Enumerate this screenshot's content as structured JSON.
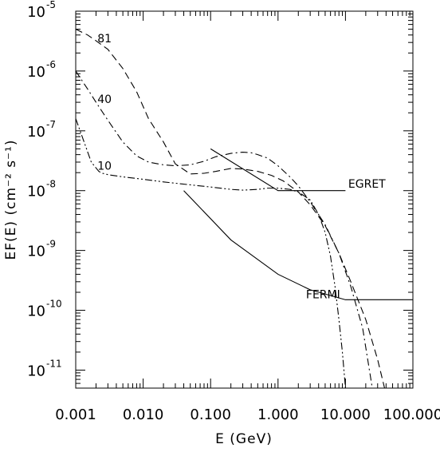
{
  "chart_data": {
    "type": "line",
    "title": "",
    "xlabel": "E (GeV)",
    "ylabel": "EF(E)  (cm⁻² s⁻¹)",
    "xscale": "log",
    "yscale": "log",
    "xlim": [
      0.001,
      100
    ],
    "ylim": [
      5e-12,
      1e-05
    ],
    "grid": false,
    "x_tick_labels": [
      "0.001",
      "0.010",
      "0.100",
      "1.000",
      "10.000",
      "100.000"
    ],
    "y_tick_labels": [
      {
        "base": "10",
        "exp": "-5"
      },
      {
        "base": "10",
        "exp": "-6"
      },
      {
        "base": "10",
        "exp": "-7"
      },
      {
        "base": "10",
        "exp": "-8"
      },
      {
        "base": "10",
        "exp": "-9"
      },
      {
        "base": "10",
        "exp": "-10"
      },
      {
        "base": "10",
        "exp": "-11"
      }
    ],
    "series": [
      {
        "name": "81",
        "style": "dashed",
        "x": [
          0.001,
          0.0015,
          0.002,
          0.003,
          0.005,
          0.008,
          0.012,
          0.02,
          0.03,
          0.05,
          0.08,
          0.12,
          0.2,
          0.3,
          0.5,
          0.8,
          1.2,
          2,
          3,
          5,
          8,
          12,
          20,
          30,
          38
        ],
        "y": [
          5e-06,
          4e-06,
          3.2e-06,
          2.3e-06,
          1.1e-06,
          4.5e-07,
          1.6e-07,
          6.5e-08,
          2.8e-08,
          1.9e-08,
          1.95e-08,
          2.1e-08,
          2.35e-08,
          2.3e-08,
          2.1e-08,
          1.8e-08,
          1.45e-08,
          9.5e-09,
          5.8e-09,
          2.6e-09,
          9e-10,
          3e-10,
          7e-11,
          1.5e-11,
          5e-12
        ]
      },
      {
        "name": "40",
        "style": "dashdot",
        "x": [
          0.001,
          0.0015,
          0.002,
          0.003,
          0.005,
          0.008,
          0.012,
          0.02,
          0.03,
          0.05,
          0.08,
          0.12,
          0.2,
          0.3,
          0.4,
          0.5,
          0.7,
          1,
          1.5,
          2,
          3,
          5,
          8,
          12,
          18,
          25
        ],
        "y": [
          1e-06,
          5e-07,
          3e-07,
          1.5e-07,
          6.5e-08,
          3.8e-08,
          3e-08,
          2.7e-08,
          2.6e-08,
          2.7e-08,
          3.1e-08,
          3.7e-08,
          4.2e-08,
          4.4e-08,
          4.3e-08,
          4e-08,
          3.5e-08,
          2.6e-08,
          1.7e-08,
          1.2e-08,
          6.5e-09,
          2.7e-09,
          9e-10,
          2.5e-10,
          5e-11,
          5e-12
        ]
      },
      {
        "name": "10",
        "style": "dashdotdot",
        "x": [
          0.001,
          0.0013,
          0.0017,
          0.0022,
          0.0025,
          0.003,
          0.005,
          0.01,
          0.02,
          0.05,
          0.1,
          0.2,
          0.3,
          0.5,
          0.7,
          1,
          1.5,
          2,
          3,
          4,
          5,
          6,
          7,
          8,
          9,
          10
        ],
        "y": [
          1.6e-07,
          7e-08,
          3e-08,
          2.1e-08,
          1.95e-08,
          1.85e-08,
          1.7e-08,
          1.55e-08,
          1.4e-08,
          1.25e-08,
          1.15e-08,
          1.05e-08,
          1.02e-08,
          1.05e-08,
          1.1e-08,
          1.1e-08,
          1.05e-08,
          9.5e-09,
          7e-09,
          4e-09,
          2e-09,
          8e-10,
          2.5e-10,
          7e-11,
          2e-11,
          5e-12
        ]
      },
      {
        "name": "EGRET",
        "style": "solid",
        "x": [
          0.1,
          1,
          10
        ],
        "y": [
          5e-08,
          1e-08,
          1e-08
        ]
      },
      {
        "name": "FERMI",
        "style": "solid",
        "x": [
          0.04,
          0.2,
          1,
          3,
          10,
          100
        ],
        "y": [
          1e-08,
          1.5e-09,
          4e-10,
          2.2e-10,
          1.5e-10,
          1.5e-10
        ]
      }
    ],
    "annotations": [
      {
        "text": "81",
        "x": 0.0021,
        "y": 3.5e-06
      },
      {
        "text": "40",
        "x": 0.0021,
        "y": 3.4e-07
      },
      {
        "text": "10",
        "x": 0.0021,
        "y": 2.6e-08
      },
      {
        "text": "EGRET",
        "x": 11,
        "y": 1.3e-08
      },
      {
        "text": "FERMI",
        "x": 2.6,
        "y": 1.85e-10
      }
    ]
  }
}
